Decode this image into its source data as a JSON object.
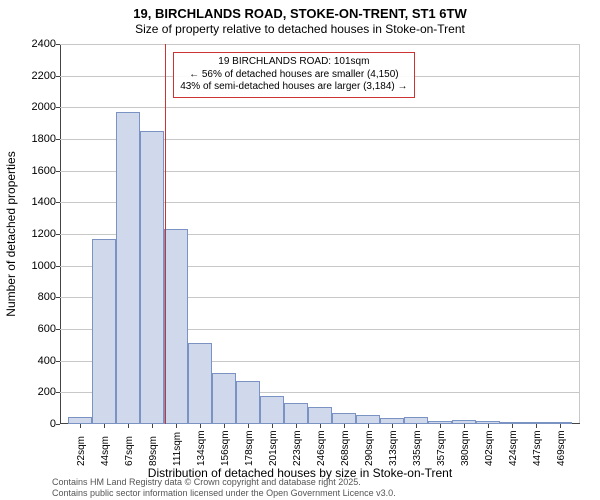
{
  "title_line1": "19, BIRCHLANDS ROAD, STOKE-ON-TRENT, ST1 6TW",
  "title_line2": "Size of property relative to detached houses in Stoke-on-Trent",
  "ylabel": "Number of detached properties",
  "xlabel": "Distribution of detached houses by size in Stoke-on-Trent",
  "footer_line1": "Contains HM Land Registry data © Crown copyright and database right 2025.",
  "footer_line2": "Contains public sector information licensed under the Open Government Licence v3.0.",
  "chart": {
    "type": "histogram",
    "background_color": "#ffffff",
    "grid_color": "#c8c8c8",
    "axis_color": "#444444",
    "bar_fill": "#cfd9eb",
    "bar_border": "#7a93c2",
    "y": {
      "min": 0,
      "max": 2400,
      "step": 200
    },
    "x_labels": [
      "22sqm",
      "44sqm",
      "67sqm",
      "89sqm",
      "111sqm",
      "134sqm",
      "156sqm",
      "178sqm",
      "201sqm",
      "223sqm",
      "246sqm",
      "268sqm",
      "290sqm",
      "313sqm",
      "335sqm",
      "357sqm",
      "380sqm",
      "402sqm",
      "424sqm",
      "447sqm",
      "469sqm"
    ],
    "values": [
      45,
      1170,
      1970,
      1850,
      1230,
      510,
      320,
      270,
      175,
      130,
      105,
      70,
      55,
      40,
      45,
      20,
      28,
      16,
      14,
      10,
      10
    ],
    "reference": {
      "index_between": [
        3,
        4
      ],
      "fraction": 0.55,
      "color": "#cc3333",
      "line1": "19 BIRCHLANDS ROAD: 101sqm",
      "line2": "← 56% of detached houses are smaller (4,150)",
      "line3": "43% of semi-detached houses are larger (3,184) →"
    }
  }
}
